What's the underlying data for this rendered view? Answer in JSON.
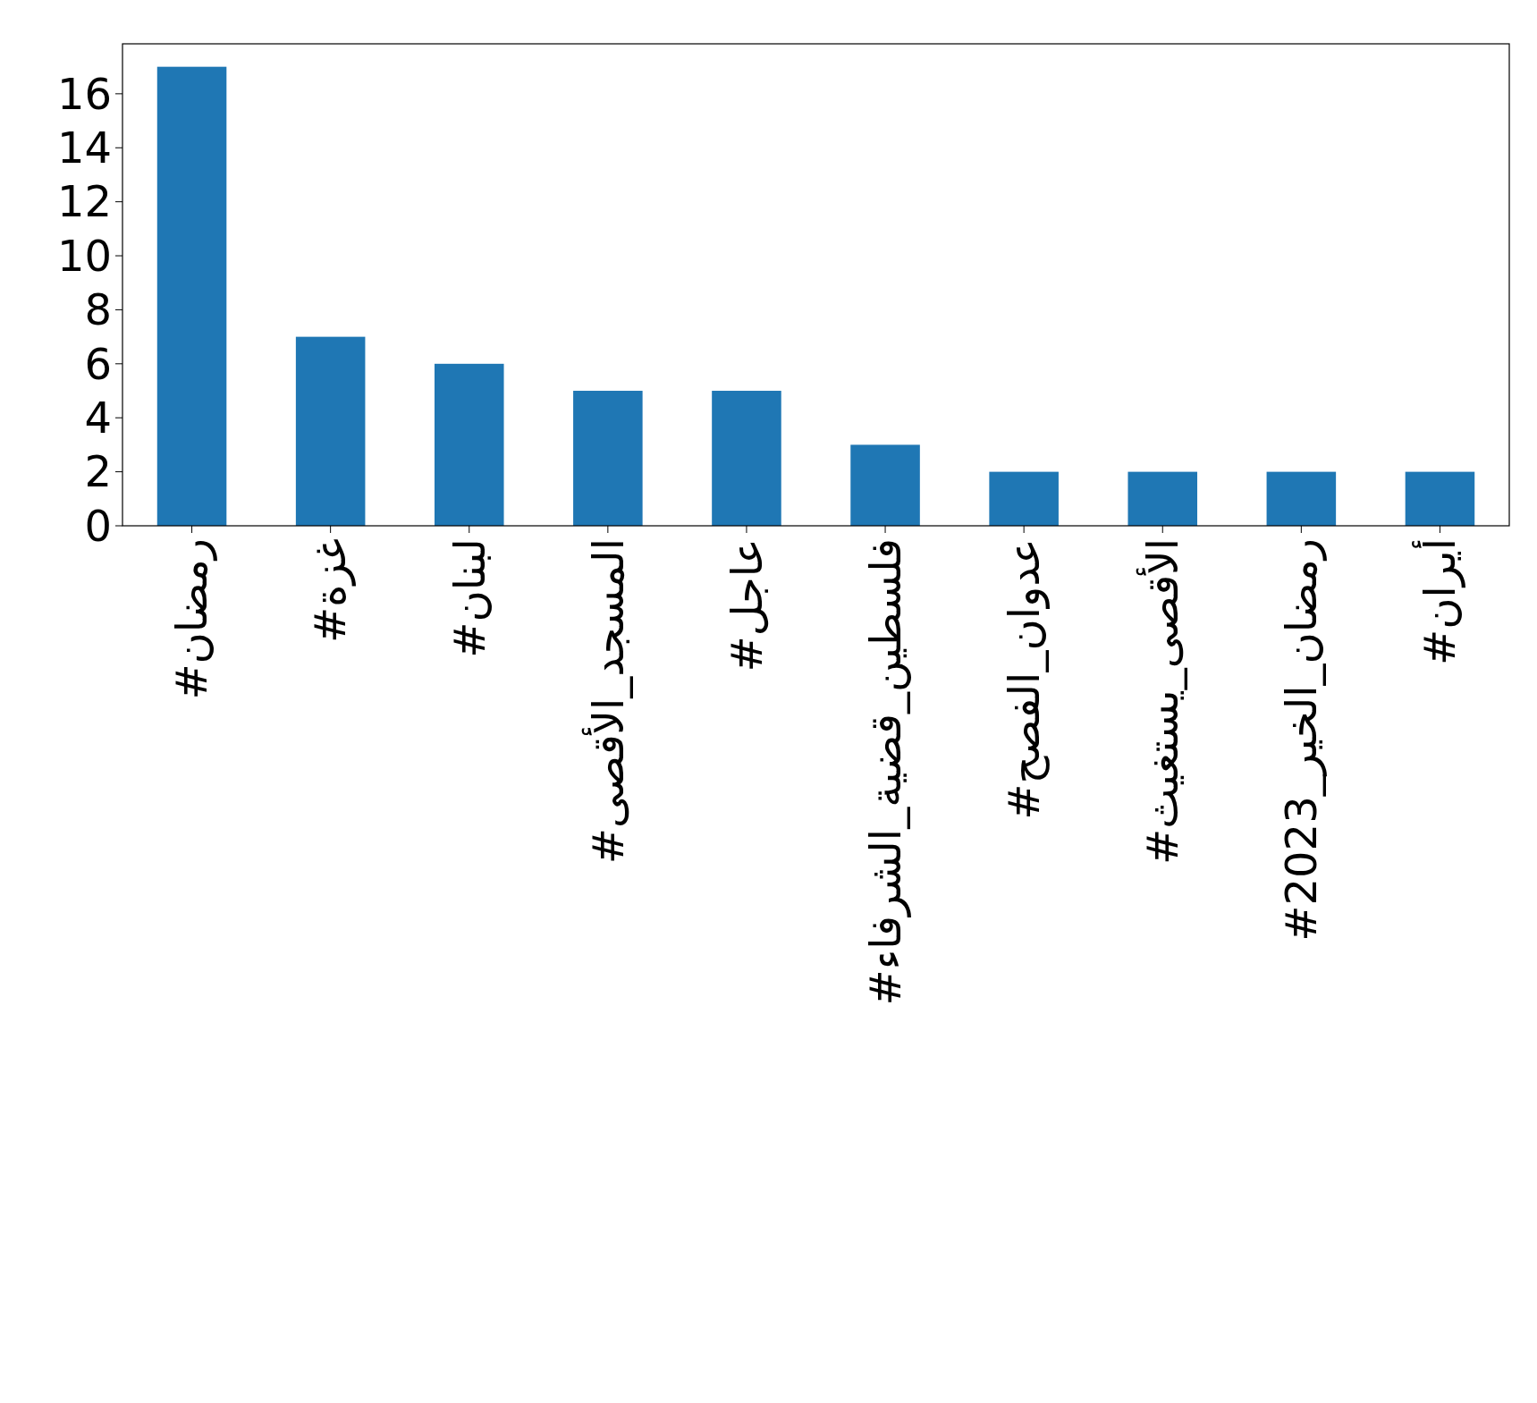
{
  "chart_data": {
    "type": "bar",
    "categories": [
      "#رمضان",
      "#غزة",
      "#لبنان",
      "#المسجد_الأقصى",
      "#عاجل",
      "#فلسطين_قضية_الشرفاء",
      "#عدوان_الفصح",
      "#الأقصى_يستغيث",
      "#رمضان_الخير_2023",
      "#أيران"
    ],
    "values": [
      17,
      7,
      6,
      5,
      5,
      3,
      2,
      2,
      2,
      2
    ],
    "color": "#1f77b4",
    "ylim": [
      0,
      17.85
    ],
    "yticks": [
      0,
      2,
      4,
      6,
      8,
      10,
      12,
      14,
      16
    ],
    "grid": false
  }
}
